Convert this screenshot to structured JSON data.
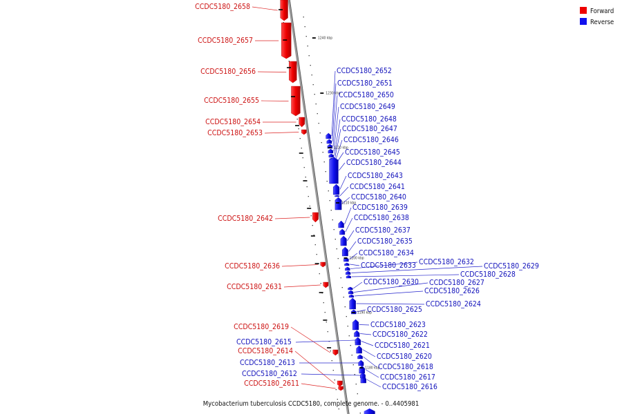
{
  "caption": "Mycobacterium tuberculosis CCDC5180, complete genome. - 0..4405981",
  "legend": [
    {
      "label": "Forward",
      "color": "#ee0000"
    },
    {
      "label": "Reverse",
      "color": "#1111ee"
    }
  ],
  "colors": {
    "forward": "#ee0000",
    "reverse": "#1111ee",
    "backbone": "#999999"
  },
  "scale_ticks": [
    "1240 kbp",
    "1230 kbp",
    "1220 kbp",
    "1210 kbp",
    "1200 kbp",
    "1190 kbp",
    "1180 kbp"
  ],
  "genes_forward": [
    "CCDC5180_2658",
    "CCDC5180_2657",
    "CCDC5180_2656",
    "CCDC5180_2655",
    "CCDC5180_2654",
    "CCDC5180_2653",
    "CCDC5180_2642",
    "CCDC5180_2636",
    "CCDC5180_2631",
    "CCDC5180_2619",
    "CCDC5180_2614",
    "CCDC5180_2611"
  ],
  "genes_reverse": [
    "CCDC5180_2652",
    "CCDC5180_2651",
    "CCDC5180_2650",
    "CCDC5180_2649",
    "CCDC5180_2648",
    "CCDC5180_2647",
    "CCDC5180_2646",
    "CCDC5180_2645",
    "CCDC5180_2644",
    "CCDC5180_2643",
    "CCDC5180_2641",
    "CCDC5180_2640",
    "CCDC5180_2639",
    "CCDC5180_2638",
    "CCDC5180_2637",
    "CCDC5180_2635",
    "CCDC5180_2634",
    "CCDC5180_2633",
    "CCDC5180_2632",
    "CCDC5180_2629",
    "CCDC5180_2628",
    "CCDC5180_2630",
    "CCDC5180_2627",
    "CCDC5180_2626",
    "CCDC5180_2624",
    "CCDC5180_2625",
    "CCDC5180_2623",
    "CCDC5180_2622",
    "CCDC5180_2621",
    "CCDC5180_2620",
    "CCDC5180_2618",
    "CCDC5180_2617",
    "CCDC5180_2616",
    "CCDC5180_2615",
    "CCDC5180_2613",
    "CCDC5180_2612"
  ]
}
